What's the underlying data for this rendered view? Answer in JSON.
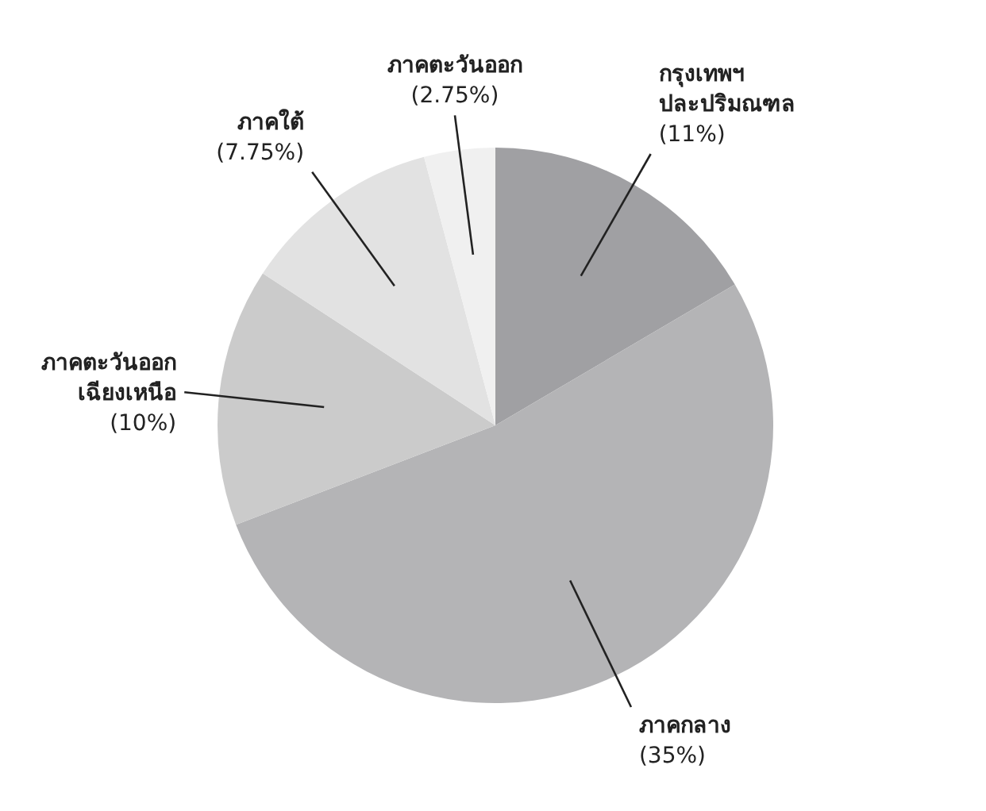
{
  "chart_data": {
    "type": "pie",
    "categories": [
      "กรุงเทพฯ ปละปริมณฑล",
      "ภาคกลาง",
      "ภาคตะวันออก เฉียงเหนือ",
      "ภาคใต้",
      "ภาคตะวันออก"
    ],
    "values": [
      11,
      35,
      10,
      7.75,
      2.75
    ],
    "value_labels": [
      "(11%)",
      "(35%)",
      "(10%)",
      "(7.75%)",
      "(2.75%)"
    ],
    "colors": [
      "#a0a0a3",
      "#b4b4b6",
      "#cbcbcb",
      "#e2e2e2",
      "#f0f0f0"
    ]
  }
}
